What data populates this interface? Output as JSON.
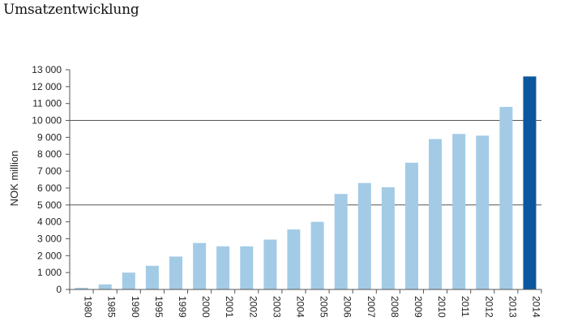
{
  "page": {
    "title": "Umsatzentwicklung"
  },
  "chart_data": {
    "type": "bar",
    "ylabel": "NOK million",
    "ylim": [
      0,
      13000
    ],
    "yticks": [
      0,
      1000,
      2000,
      3000,
      4000,
      5000,
      6000,
      7000,
      8000,
      9000,
      10000,
      11000,
      12000,
      13000
    ],
    "ytick_labels": [
      "0",
      "1 000",
      "2 000",
      "3 000",
      "4 000",
      "5 000",
      "6 000",
      "7 000",
      "8 000",
      "9 000",
      "10 000",
      "11 000",
      "12 000",
      "13 000"
    ],
    "gridlines": [
      5000,
      10000
    ],
    "categories": [
      "1980",
      "1985",
      "1990",
      "1995",
      "1999",
      "2000",
      "2001",
      "2002",
      "2003",
      "2004",
      "2005",
      "2006",
      "2007",
      "2008",
      "2009",
      "2010",
      "2011",
      "2012",
      "2013",
      "2014"
    ],
    "values": [
      100,
      300,
      1000,
      1400,
      1950,
      2750,
      2550,
      2550,
      2950,
      3550,
      4000,
      5650,
      6300,
      6050,
      7500,
      8900,
      9200,
      9100,
      10800,
      12600
    ],
    "highlight_category": "2014",
    "colors": {
      "bar": "#a3cbe6",
      "highlight": "#0b579e",
      "axis": "#555555",
      "grid": "#555555"
    }
  }
}
